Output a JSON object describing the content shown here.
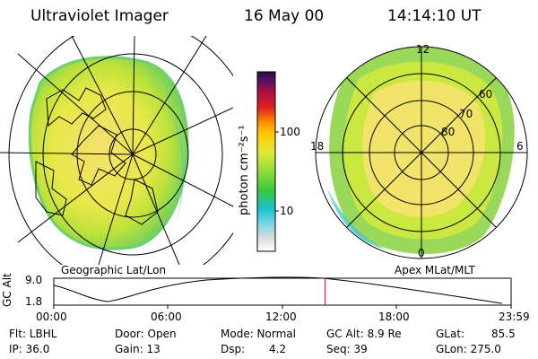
{
  "header": {
    "instrument": "Ultraviolet Imager",
    "date": "16 May 00",
    "time": "14:14:10 UT"
  },
  "colorbar": {
    "unit_label": "photon cm⁻²s⁻¹",
    "ticks": [
      "100",
      "10"
    ]
  },
  "geo_panel": {
    "label": "Geographic Lat/Lon"
  },
  "mag_panel": {
    "label": "Apex MLat/MLT",
    "lat_labels": [
      "60",
      "70",
      "80"
    ],
    "mlt_labels": {
      "top": "12",
      "left": "18",
      "right": "6",
      "bottom": "0"
    }
  },
  "altitude_plot": {
    "axis_label": "GC Alt",
    "y_ticks": [
      "9.0",
      "1.8"
    ],
    "x_ticks": [
      "00:00",
      "06:00",
      "12:00",
      "18:00",
      "23:59"
    ],
    "current_time_hours": 14.24
  },
  "status": {
    "flt": "Flt: LBHL",
    "ip": "IP: 36.0",
    "door": "Door: Open",
    "gain": "Gain: 13",
    "mode": "Mode: Normal",
    "dsp": "Dsp:",
    "dsp_value": "4.2",
    "gc_alt": "GC Alt: 8.9 Re",
    "seq": "Seq: 39",
    "glat": "GLat:",
    "glat_value": "85.5",
    "glon": "GLon: 275.0"
  },
  "colors": {
    "oval_outer": "#8fd66a",
    "oval_mid": "#c6e83a",
    "oval_inner": "#f2e86a",
    "cursor": "#e00000"
  }
}
